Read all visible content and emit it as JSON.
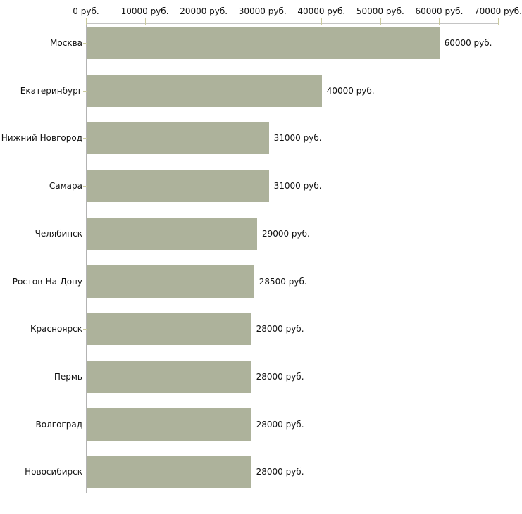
{
  "chart_data": {
    "type": "bar",
    "orientation": "horizontal",
    "title": "",
    "categories": [
      "Москва",
      "Екатеринбург",
      "Нижний Новгород",
      "Самара",
      "Челябинск",
      "Ростов-На-Дону",
      "Красноярск",
      "Пермь",
      "Волгоград",
      "Новосибирск"
    ],
    "values": [
      60000,
      40000,
      31000,
      31000,
      29000,
      28500,
      28000,
      28000,
      28000,
      28000
    ],
    "value_labels": [
      "60000 руб.",
      "40000 руб.",
      "31000 руб.",
      "31000 руб.",
      "29000 руб.",
      "28500 руб.",
      "28000 руб.",
      "28000 руб.",
      "28000 руб.",
      "28000 руб."
    ],
    "x_ticks": [
      0,
      10000,
      20000,
      30000,
      40000,
      50000,
      60000,
      70000
    ],
    "x_tick_labels": [
      "0 руб.",
      "10000 руб.",
      "20000 руб.",
      "30000 руб.",
      "40000 руб.",
      "50000 руб.",
      "60000 руб.",
      "70000 руб."
    ],
    "xlim": [
      0,
      70000
    ],
    "grid": false,
    "legend": null,
    "colors": {
      "bar_fill": "#adb29b",
      "tick_mark": "#caca9e",
      "axis_line_horizontal": "#c4c4c4",
      "axis_line_vertical": "#b3b3b3",
      "text": "#111111",
      "background": "#ffffff"
    }
  }
}
